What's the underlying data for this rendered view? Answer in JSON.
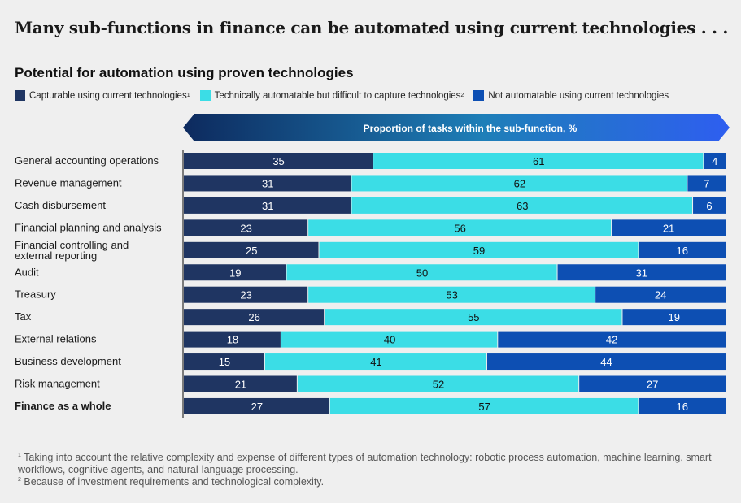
{
  "headline": "Many sub-functions in finance can be automated using current technologies . . .",
  "chart_data": {
    "type": "bar",
    "stacked": true,
    "orientation": "horizontal",
    "title": "Potential for automation using proven technologies",
    "axis_banner": "Proportion of tasks within the sub-function, %",
    "xlim": [
      0,
      100
    ],
    "categories": [
      "General accounting operations",
      "Revenue management",
      "Cash disbursement",
      "Financial planning and analysis",
      "Financial controlling and external reporting",
      "Audit",
      "Treasury",
      "Tax",
      "External relations",
      "Business development",
      "Risk management",
      "Finance as a whole"
    ],
    "bold_category": "Finance as a whole",
    "series": [
      {
        "name": "Capturable using current technologies",
        "footnote": "1",
        "color": "#1f3562",
        "values": [
          35,
          31,
          31,
          23,
          25,
          19,
          23,
          26,
          18,
          15,
          21,
          27
        ]
      },
      {
        "name": "Technically automatable but difficult to capture technologies",
        "footnote": "2",
        "color": "#3bdde6",
        "values": [
          61,
          62,
          63,
          56,
          59,
          50,
          53,
          55,
          40,
          41,
          52,
          57
        ]
      },
      {
        "name": "Not automatable using current technologies",
        "footnote": "",
        "color": "#0d4fb3",
        "values": [
          4,
          7,
          6,
          21,
          16,
          31,
          24,
          19,
          42,
          44,
          27,
          16
        ]
      }
    ]
  },
  "footnotes": [
    {
      "mark": "1",
      "text": "Taking into account the relative complexity and expense of different types of automation technology: robotic process automation, machine learning, smart workflows, cognitive agents, and natural-language processing."
    },
    {
      "mark": "2",
      "text": "Because of investment requirements and technological complexity."
    }
  ]
}
